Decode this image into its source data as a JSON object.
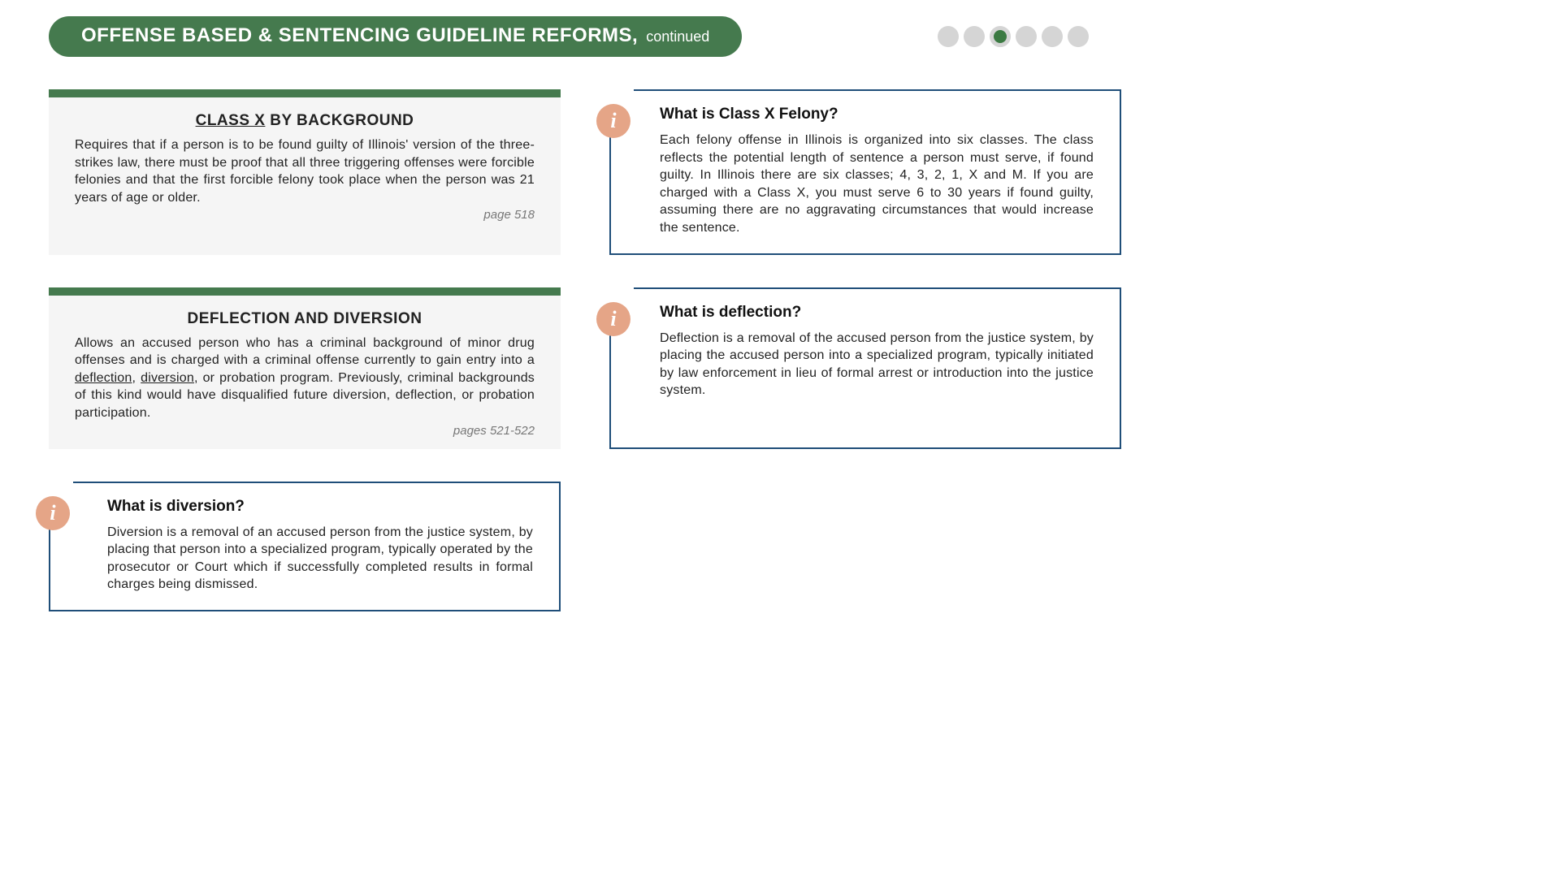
{
  "header": {
    "title_main": "OFFENSE BASED & SENTENCING GUIDELINE REFORMS,",
    "title_sub": "continued",
    "colors": {
      "pill_bg": "#457a4e",
      "pill_text": "#ffffff",
      "dot_inactive": "#d5d5d5",
      "dot_active": "#3b7a42"
    },
    "pagination": {
      "total": 6,
      "active_index": 2
    }
  },
  "cards": {
    "class_x": {
      "title_underlined": "CLASS X",
      "title_rest": " BY BACKGROUND",
      "body": "Requires that if a person is to be found guilty of Illinois' version of the three-strikes law, there must be proof that all three triggering offenses were forcible felonies and that the first forcible felony took place when the person was 21 years of age or older.",
      "page": "page 518"
    },
    "deflection_diversion": {
      "title": "DEFLECTION AND DIVERSION",
      "body_pre": "Allows an accused person who has a criminal background of minor drug offenses and is charged with a criminal offense currently to gain entry into a ",
      "ul1": "deflection",
      "sep": ", ",
      "ul2": "diversion",
      "body_post": ", or probation program. Previously, criminal backgrounds of this kind would have disqualified future diversion, deflection, or probation participation.",
      "page": "pages 521-522"
    }
  },
  "info": {
    "class_x_felony": {
      "title": "What is Class X Felony?",
      "body": "Each felony offense in Illinois is organized into six classes. The class reflects the potential length of sentence a person must serve, if found guilty. In Illinois there are six classes; 4, 3, 2, 1, X and M. If you are charged with a Class X, you must serve 6 to 30 years if found guilty, assuming there are no aggravating circumstances that would increase the sentence."
    },
    "deflection": {
      "title": "What is deflection?",
      "body": "Deflection is a removal of the accused person from the justice system, by placing  the accused person into a specialized program, typically  initiated by law enforcement in lieu of formal arrest or introduction into the justice system."
    },
    "diversion": {
      "title": "What is diversion?",
      "body": "Diversion is a removal of an accused person from the justice system, by placing that person into a specialized program, typically operated  by the prosecutor or Court which if successfully completed results in formal charges being dismissed."
    }
  },
  "styling": {
    "card_gray_bg": "#f5f5f5",
    "card_gray_top_border": "#457a4e",
    "info_border": "#1f4e79",
    "info_icon_bg": "#e5a587",
    "info_icon_color": "#ffffff",
    "body_text_color": "#222222",
    "page_ref_color": "#777777"
  }
}
